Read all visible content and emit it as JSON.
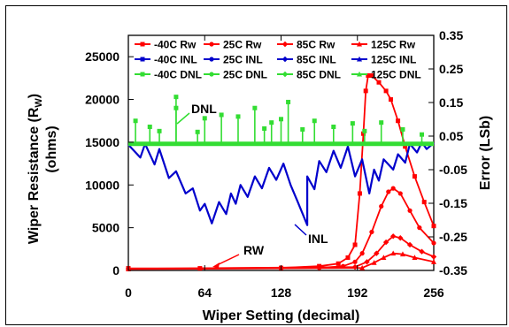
{
  "chart_data": {
    "type": "line",
    "title": "",
    "xlabel": "Wiper Setting (decimal)",
    "ylabel_left_main": "Wiper Resistance (R",
    "ylabel_left_sub": "W",
    "ylabel_left_paren": ")",
    "ylabel_left_units": "(ohms)",
    "ylabel_right": "Error (LSb)",
    "xlim": [
      0,
      256
    ],
    "ylim_left": [
      0,
      27500
    ],
    "ylim_right": [
      -0.35,
      0.35
    ],
    "x_ticks": [
      0,
      64,
      128,
      192,
      256
    ],
    "y_ticks_left": [
      0,
      5000,
      10000,
      15000,
      20000,
      25000
    ],
    "y_ticks_right": [
      -0.35,
      -0.25,
      -0.15,
      -0.05,
      0.05,
      0.15,
      0.25,
      0.35
    ],
    "y_ticks_right_labels": [
      "-0.35",
      "-0.25",
      "-0.15",
      "-0.05",
      "0.05",
      "0.15",
      "0.25",
      "0.35"
    ],
    "grid": false,
    "legend_placement": "top",
    "legend": [
      [
        "-40C Rw",
        "25C Rw",
        "85C Rw",
        "125C Rw"
      ],
      [
        "-40C INL",
        "25C INL",
        "85C INL",
        "125C INL"
      ],
      [
        "-40C DNL",
        "25C DNL",
        "85C DNL",
        "125C DNL"
      ]
    ],
    "colors": {
      "rw": "#ff0000",
      "inl": "#0000cc",
      "dnl": "#33dd33"
    },
    "annotations": {
      "dnl": "DNL",
      "inl": "INL",
      "rw": "RW"
    },
    "series": [
      {
        "group": "rw",
        "axis": "left",
        "points": [
          [
            0,
            250
          ],
          [
            60,
            250
          ],
          [
            128,
            300
          ],
          [
            160,
            500
          ],
          [
            176,
            800
          ],
          [
            184,
            1500
          ],
          [
            190,
            3000
          ],
          [
            194,
            9000
          ],
          [
            197,
            16000
          ],
          [
            199,
            21000
          ],
          [
            201,
            22800
          ],
          [
            204,
            22800
          ],
          [
            210,
            22000
          ],
          [
            216,
            21000
          ],
          [
            220,
            20000
          ],
          [
            226,
            17500
          ],
          [
            232,
            14500
          ],
          [
            240,
            11000
          ],
          [
            248,
            8000
          ],
          [
            256,
            5200
          ]
        ]
      },
      {
        "group": "rw",
        "axis": "left",
        "points": [
          [
            0,
            200
          ],
          [
            160,
            300
          ],
          [
            180,
            500
          ],
          [
            190,
            1000
          ],
          [
            196,
            2000
          ],
          [
            204,
            4500
          ],
          [
            212,
            7500
          ],
          [
            218,
            9200
          ],
          [
            222,
            9600
          ],
          [
            228,
            9000
          ],
          [
            236,
            7000
          ],
          [
            244,
            5000
          ],
          [
            256,
            3200
          ]
        ]
      },
      {
        "group": "rw",
        "axis": "left",
        "points": [
          [
            0,
            200
          ],
          [
            190,
            400
          ],
          [
            200,
            1000
          ],
          [
            208,
            2000
          ],
          [
            216,
            3300
          ],
          [
            222,
            4000
          ],
          [
            228,
            3800
          ],
          [
            236,
            3000
          ],
          [
            246,
            2200
          ],
          [
            256,
            1600
          ]
        ]
      },
      {
        "group": "rw",
        "axis": "left",
        "points": [
          [
            0,
            150
          ],
          [
            196,
            300
          ],
          [
            206,
            900
          ],
          [
            214,
            1500
          ],
          [
            222,
            2000
          ],
          [
            230,
            1900
          ],
          [
            240,
            1500
          ],
          [
            256,
            1000
          ]
        ]
      },
      {
        "group": "inl",
        "axis": "left",
        "points": [
          [
            0,
            14700
          ],
          [
            10,
            13200
          ],
          [
            14,
            14800
          ],
          [
            22,
            12400
          ],
          [
            26,
            14200
          ],
          [
            34,
            10800
          ],
          [
            40,
            11600
          ],
          [
            48,
            9000
          ],
          [
            54,
            9600
          ],
          [
            60,
            7000
          ],
          [
            64,
            7800
          ],
          [
            70,
            5500
          ],
          [
            76,
            8000
          ],
          [
            82,
            6600
          ],
          [
            86,
            9000
          ],
          [
            90,
            7800
          ],
          [
            94,
            10000
          ],
          [
            100,
            8600
          ],
          [
            106,
            11000
          ],
          [
            112,
            9600
          ],
          [
            118,
            12000
          ],
          [
            124,
            10600
          ],
          [
            130,
            12500
          ],
          [
            136,
            10000
          ],
          [
            142,
            8000
          ],
          [
            150,
            5300
          ],
          [
            150,
            11000
          ],
          [
            156,
            9500
          ],
          [
            160,
            12800
          ],
          [
            166,
            11500
          ],
          [
            172,
            14000
          ],
          [
            178,
            12000
          ],
          [
            184,
            14500
          ],
          [
            190,
            11000
          ],
          [
            196,
            13000
          ],
          [
            202,
            9000
          ],
          [
            206,
            11800
          ],
          [
            210,
            10500
          ],
          [
            214,
            13000
          ],
          [
            222,
            11800
          ],
          [
            226,
            13600
          ],
          [
            232,
            12600
          ],
          [
            236,
            14800
          ],
          [
            242,
            13800
          ],
          [
            246,
            15000
          ],
          [
            250,
            14200
          ],
          [
            256,
            14900
          ]
        ]
      },
      {
        "group": "dnl",
        "axis": "left",
        "points": [
          [
            0,
            14800
          ],
          [
            256,
            14800
          ]
        ]
      }
    ],
    "dnl_spikes": [
      [
        6,
        17500
      ],
      [
        18,
        16800
      ],
      [
        26,
        16300
      ],
      [
        40,
        19000
      ],
      [
        40,
        20300
      ],
      [
        58,
        16200
      ],
      [
        64,
        17800
      ],
      [
        78,
        18200
      ],
      [
        92,
        18000
      ],
      [
        106,
        19000
      ],
      [
        114,
        16600
      ],
      [
        120,
        17300
      ],
      [
        128,
        17700
      ],
      [
        134,
        19700
      ],
      [
        146,
        16500
      ],
      [
        156,
        17500
      ],
      [
        172,
        16800
      ],
      [
        188,
        17200
      ],
      [
        198,
        16300
      ],
      [
        212,
        17300
      ],
      [
        230,
        16500
      ],
      [
        246,
        15900
      ]
    ]
  }
}
